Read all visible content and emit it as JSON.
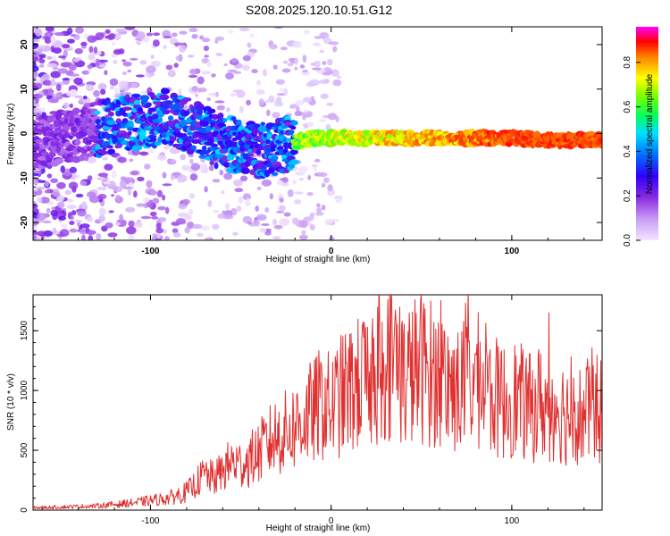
{
  "title": "S208.2025.120.10.51.G12",
  "chart_data": [
    {
      "type": "heatmap",
      "xlabel": "Height of straight line (km)",
      "ylabel": "Frequency (Hz)",
      "xlim": [
        -165,
        150
      ],
      "ylim": [
        -24,
        24
      ],
      "xticks": [
        -100,
        0,
        100
      ],
      "yticks": [
        -20,
        -10,
        0,
        10,
        20
      ],
      "colorbar": {
        "label": "Normalized spectral amplitude",
        "range": [
          0,
          0.96
        ],
        "ticks": [
          "0.0",
          "0.2",
          "0.4",
          "0.6",
          "0.8"
        ],
        "colors": [
          "#f2e6ff",
          "#8a2be2",
          "#4b00ff",
          "#0000ff",
          "#00ffff",
          "#00ff00",
          "#ffff00",
          "#ff8000",
          "#ff0000",
          "#ff00ff"
        ]
      },
      "ridge": {
        "x": [
          -165,
          -140,
          -120,
          -100,
          -90,
          -80,
          -70,
          -60,
          -50,
          -40,
          -30,
          -20,
          -10,
          0,
          20,
          40,
          60,
          80,
          100,
          120,
          150
        ],
        "y": [
          -2,
          0,
          2,
          3,
          4,
          2,
          0,
          -2,
          -3,
          -4,
          -3,
          -2,
          -1,
          -1,
          -1,
          -1,
          -1,
          -1,
          -1,
          -1.5,
          -1.5
        ]
      }
    },
    {
      "type": "line",
      "xlabel": "Height of straight line (km)",
      "ylabel": "SNR (10 * v/v)",
      "xlim": [
        -165,
        150
      ],
      "ylim": [
        0,
        1800
      ],
      "xticks": [
        -100,
        0,
        100
      ],
      "yticks": [
        0,
        500,
        1000,
        1500
      ],
      "color": "#e03030",
      "x": [
        -165,
        -150,
        -130,
        -110,
        -100,
        -90,
        -80,
        -75,
        -70,
        -65,
        -60,
        -55,
        -50,
        -45,
        -40,
        -35,
        -30,
        -25,
        -20,
        -15,
        -10,
        -5,
        0,
        5,
        10,
        15,
        20,
        25,
        30,
        35,
        40,
        45,
        50,
        55,
        60,
        65,
        70,
        75,
        80,
        85,
        90,
        95,
        100,
        105,
        110,
        115,
        120,
        125,
        130,
        135,
        140,
        145,
        150
      ],
      "y": [
        20,
        25,
        35,
        60,
        80,
        100,
        150,
        220,
        300,
        260,
        330,
        400,
        380,
        420,
        480,
        560,
        620,
        650,
        700,
        760,
        820,
        900,
        850,
        950,
        1000,
        1050,
        1100,
        1150,
        1200,
        1300,
        1100,
        1150,
        1200,
        1150,
        1100,
        1050,
        1000,
        1050,
        1100,
        1000,
        950,
        900,
        950,
        900,
        850,
        900,
        850,
        880,
        800,
        850,
        750,
        900,
        800
      ]
    }
  ]
}
